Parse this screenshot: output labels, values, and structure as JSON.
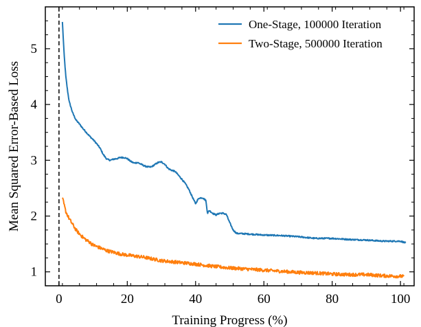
{
  "chart_data": {
    "type": "line",
    "title": "",
    "xlabel": "Training Progress (%)",
    "ylabel": "Mean Squared Error-Based Loss",
    "xlim": [
      -4,
      104
    ],
    "ylim": [
      0.75,
      5.75
    ],
    "xticks": [
      0,
      20,
      40,
      60,
      80,
      100
    ],
    "yticks": [
      1,
      2,
      3,
      4,
      5
    ],
    "grid": false,
    "legend_position": "top-right",
    "vline_x": 0,
    "colors": {
      "one_stage": "#1f77b4",
      "two_stage": "#ff7f0e",
      "vline": "#000000"
    },
    "series": [
      {
        "name": "One-Stage, 100000 Iteration",
        "color": "#1f77b4",
        "x": [
          1,
          1.5,
          2,
          2.5,
          3,
          4,
          5,
          6,
          7,
          8,
          9,
          10,
          11,
          12,
          13,
          14,
          15,
          16,
          17,
          18,
          19,
          20,
          21,
          22,
          23,
          24,
          25,
          26,
          27,
          28,
          29,
          30,
          31,
          32,
          33,
          34,
          35,
          36,
          37,
          38,
          39,
          40,
          40.5,
          41,
          42,
          43,
          43.5,
          44,
          45,
          46,
          47,
          48,
          49,
          50,
          51,
          52,
          55,
          60,
          65,
          70,
          75,
          80,
          85,
          90,
          95,
          100,
          101.5
        ],
        "y": [
          5.48,
          4.9,
          4.5,
          4.25,
          4.05,
          3.85,
          3.72,
          3.65,
          3.57,
          3.5,
          3.43,
          3.37,
          3.3,
          3.22,
          3.1,
          3.02,
          3.0,
          3.02,
          3.03,
          3.05,
          3.05,
          3.03,
          2.98,
          2.95,
          2.96,
          2.93,
          2.9,
          2.88,
          2.88,
          2.92,
          2.96,
          2.97,
          2.93,
          2.85,
          2.82,
          2.8,
          2.73,
          2.66,
          2.58,
          2.48,
          2.35,
          2.22,
          2.28,
          2.32,
          2.33,
          2.28,
          2.05,
          2.1,
          2.05,
          2.02,
          2.05,
          2.05,
          2.03,
          1.88,
          1.75,
          1.69,
          1.68,
          1.66,
          1.65,
          1.63,
          1.6,
          1.6,
          1.58,
          1.57,
          1.55,
          1.55,
          1.52
        ],
        "noise": 0.012
      },
      {
        "name": "Two-Stage, 500000 Iteration",
        "color": "#ff7f0e",
        "x": [
          1,
          1.5,
          2,
          3,
          4,
          5,
          6,
          7,
          8,
          9,
          10,
          12,
          14,
          16,
          18,
          20,
          25,
          30,
          35,
          40,
          45,
          50,
          55,
          60,
          65,
          70,
          75,
          80,
          85,
          90,
          95,
          100,
          101
        ],
        "y": [
          2.33,
          2.2,
          2.08,
          1.95,
          1.85,
          1.75,
          1.68,
          1.62,
          1.57,
          1.53,
          1.48,
          1.43,
          1.38,
          1.35,
          1.32,
          1.3,
          1.26,
          1.2,
          1.17,
          1.14,
          1.1,
          1.07,
          1.05,
          1.03,
          1.01,
          0.99,
          0.98,
          0.96,
          0.95,
          0.95,
          0.93,
          0.92,
          0.92
        ],
        "noise": 0.03
      }
    ]
  }
}
